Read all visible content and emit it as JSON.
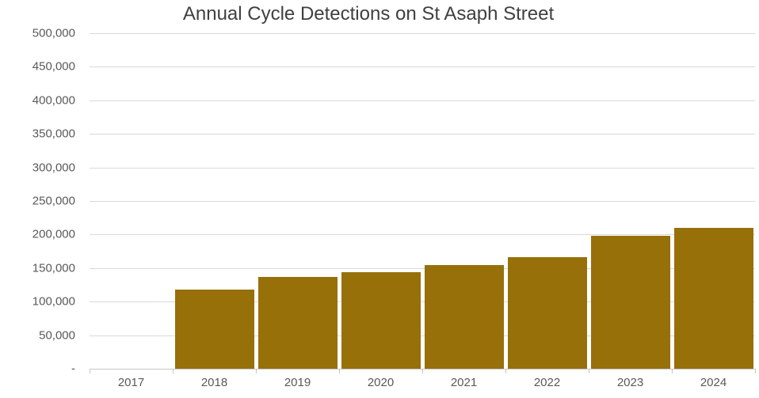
{
  "chart_data": {
    "type": "bar",
    "title": "Annual Cycle Detections on St Asaph Street",
    "categories": [
      "2017",
      "2018",
      "2019",
      "2020",
      "2021",
      "2022",
      "2023",
      "2024"
    ],
    "values": [
      0,
      118000,
      137000,
      144000,
      154000,
      166000,
      198000,
      210000
    ],
    "xlabel": "",
    "ylabel": "",
    "ylim": [
      0,
      500000
    ],
    "ytick_step": 50000,
    "yticks": [
      {
        "value": 500000,
        "label": "500,000"
      },
      {
        "value": 450000,
        "label": "450,000"
      },
      {
        "value": 400000,
        "label": "400,000"
      },
      {
        "value": 350000,
        "label": "350,000"
      },
      {
        "value": 300000,
        "label": "300,000"
      },
      {
        "value": 250000,
        "label": "250,000"
      },
      {
        "value": 200000,
        "label": "200,000"
      },
      {
        "value": 150000,
        "label": "150,000"
      },
      {
        "value": 100000,
        "label": "100,000"
      },
      {
        "value": 50000,
        "label": "50,000"
      },
      {
        "value": 0,
        "label": "-"
      }
    ],
    "grid": true,
    "legend": false,
    "bar_color": "#97700A",
    "colors": {
      "title": "#404040",
      "axis_labels": "#595959",
      "gridline": "#D9D9D9",
      "axis_line": "#C6C6C6",
      "background": "#FFFFFF"
    }
  }
}
